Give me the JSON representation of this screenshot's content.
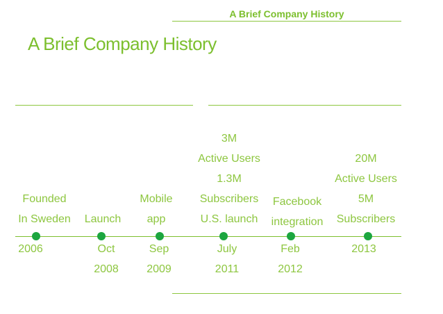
{
  "slide": {
    "header": "A Brief Company History",
    "title": "A Brief Company History"
  },
  "timeline": {
    "events": [
      {
        "desc": [
          "Founded",
          "In Sweden"
        ],
        "date": [
          "2006"
        ]
      },
      {
        "desc": [
          "Launch"
        ],
        "date": [
          "Oct",
          "2008"
        ]
      },
      {
        "desc": [
          "Mobile",
          "app"
        ],
        "date": [
          "Sep",
          "2009"
        ]
      },
      {
        "desc": [
          "3M",
          "Active Users",
          "1.3M",
          "Subscribers",
          "U.S. launch"
        ],
        "date": [
          "July",
          "2011"
        ]
      },
      {
        "desc": [
          "Facebook",
          "integration"
        ],
        "date": [
          "Feb",
          "2012"
        ]
      },
      {
        "desc": [
          "20M",
          "Active Users",
          "5M",
          "Subscribers"
        ],
        "date": [
          "2013"
        ]
      }
    ]
  },
  "colors": {
    "accent": "#8dc63f",
    "dot": "#1ca63f"
  }
}
